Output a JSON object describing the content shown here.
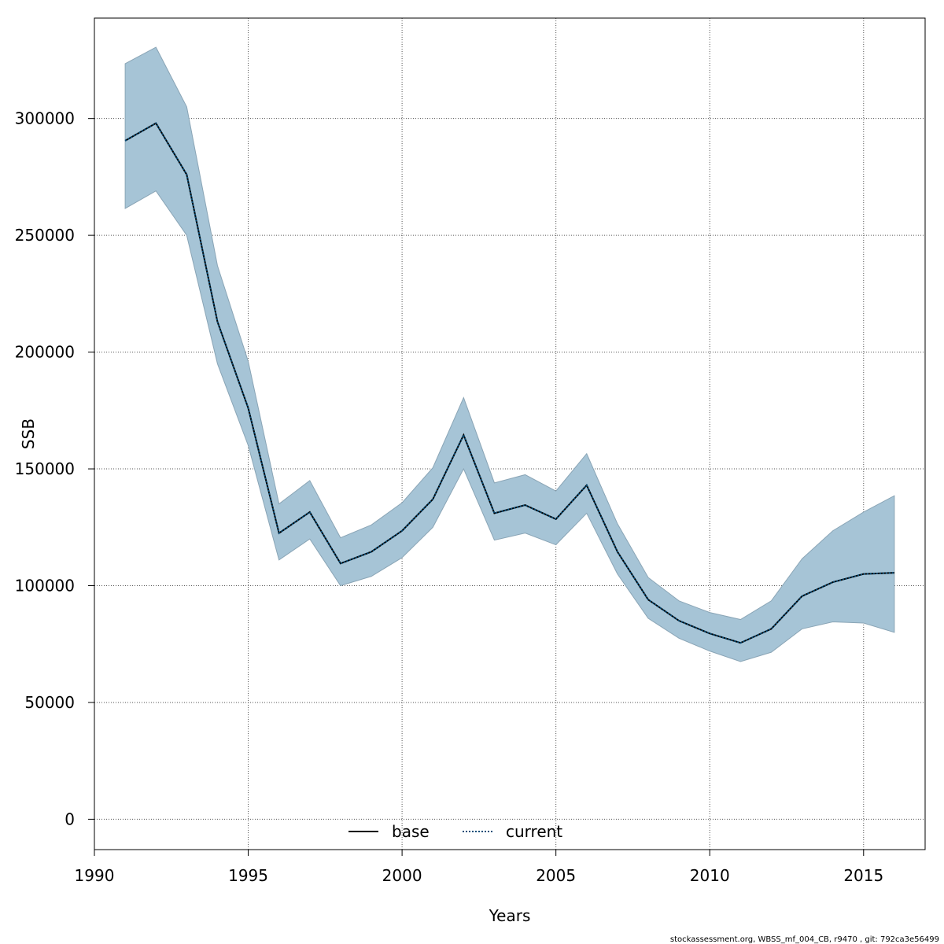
{
  "chart_data": {
    "type": "line",
    "xlabel": "Years",
    "ylabel": "SSB",
    "xlim": [
      1990,
      2017
    ],
    "ylim": [
      -13000,
      343000
    ],
    "x_ticks": [
      1990,
      1995,
      2000,
      2005,
      2010,
      2015
    ],
    "y_ticks": [
      0,
      50000,
      100000,
      150000,
      200000,
      250000,
      300000
    ],
    "x_tick_labels": [
      "1990",
      "1995",
      "2000",
      "2005",
      "2010",
      "2015"
    ],
    "y_tick_labels": [
      "0",
      "50000",
      "100000",
      "150000",
      "200000",
      "250000",
      "300000"
    ],
    "grid": true,
    "legend_position": "bottom-center",
    "x": [
      1991,
      1992,
      1993,
      1994,
      1995,
      1996,
      1997,
      1998,
      1999,
      2000,
      2001,
      2002,
      2003,
      2004,
      2005,
      2006,
      2007,
      2008,
      2009,
      2010,
      2011,
      2012,
      2013,
      2014,
      2015,
      2016
    ],
    "series": [
      {
        "name": "base",
        "style": "solid",
        "color": "#000000",
        "values": [
          290500,
          298000,
          276000,
          213000,
          176000,
          122500,
          131500,
          109500,
          114500,
          123500,
          137000,
          164500,
          131000,
          134500,
          128500,
          143000,
          114500,
          94000,
          85000,
          79500,
          75500,
          81500,
          95500,
          101500,
          105000,
          105500
        ]
      },
      {
        "name": "current",
        "style": "dotted",
        "color": "#0a4f7a",
        "values": [
          290500,
          298000,
          276000,
          213000,
          176000,
          122500,
          131500,
          109500,
          114500,
          123500,
          137000,
          164500,
          131000,
          134500,
          128500,
          143000,
          114500,
          94000,
          85000,
          79500,
          75500,
          81500,
          95500,
          101500,
          105000,
          105500
        ]
      }
    ],
    "band": {
      "color": "#a6c4d6",
      "upper": [
        323500,
        330500,
        305000,
        237000,
        196000,
        135000,
        145000,
        120500,
        126000,
        135500,
        150500,
        180500,
        144000,
        147500,
        140500,
        156500,
        126500,
        103500,
        93500,
        88500,
        85500,
        93500,
        111500,
        123500,
        131500,
        138500
      ],
      "lower": [
        261500,
        269000,
        250000,
        195000,
        160000,
        111000,
        120000,
        100000,
        104000,
        112000,
        125000,
        150000,
        119500,
        122500,
        117500,
        131000,
        105000,
        86000,
        77500,
        72000,
        67500,
        71500,
        81500,
        84500,
        84000,
        80000
      ]
    }
  },
  "footer": {
    "text": "stockassessment.org, WBSS_mf_004_CB, r9470 , git: 792ca3e56499"
  }
}
